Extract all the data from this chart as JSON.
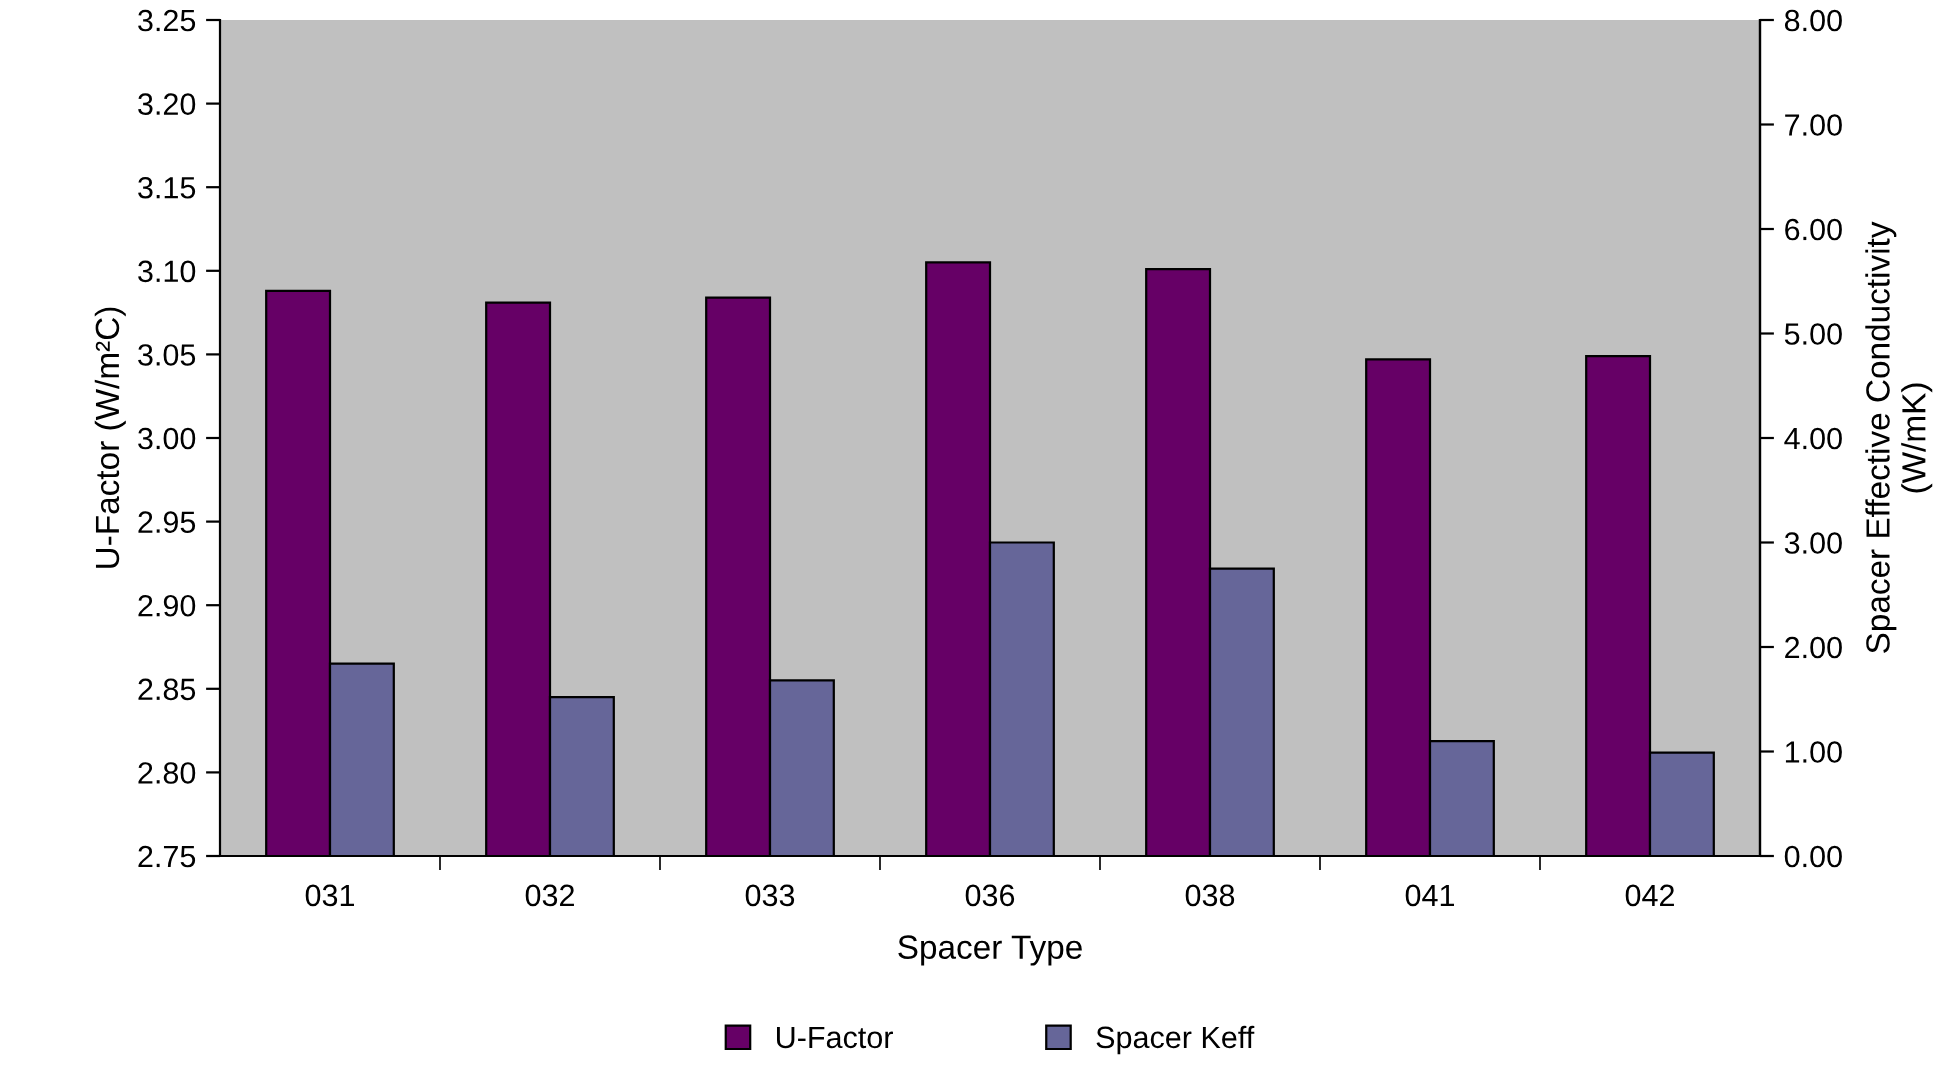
{
  "chart_data": {
    "type": "bar",
    "xlabel": "Spacer Type",
    "ylabel": "U-Factor (W/m²C)",
    "y2label": "Spacer Effective Conductivity\n(W/mK)",
    "categories": [
      "031",
      "032",
      "033",
      "036",
      "038",
      "041",
      "042"
    ],
    "series": [
      {
        "name": "U-Factor",
        "color": "#660066",
        "values": [
          3.088,
          3.081,
          3.084,
          3.105,
          3.101,
          3.047,
          3.049
        ]
      },
      {
        "name": "Spacer Keff",
        "color": "#666699",
        "axis": "y2",
        "values": [
          1.84,
          1.52,
          1.68,
          3.0,
          2.75,
          1.1,
          0.99
        ]
      }
    ],
    "ylim": [
      2.75,
      3.25
    ],
    "yticks": [
      {
        "value": 2.75,
        "label": "2.75"
      },
      {
        "value": 2.8,
        "label": "2.80"
      },
      {
        "value": 2.85,
        "label": "2.85"
      },
      {
        "value": 2.9,
        "label": "2.90"
      },
      {
        "value": 2.95,
        "label": "2.95"
      },
      {
        "value": 3.0,
        "label": "3.00"
      },
      {
        "value": 3.05,
        "label": "3.05"
      },
      {
        "value": 3.1,
        "label": "3.10"
      },
      {
        "value": 3.15,
        "label": "3.15"
      },
      {
        "value": 3.2,
        "label": "3.20"
      },
      {
        "value": 3.25,
        "label": "3.25"
      }
    ],
    "y2lim": [
      0,
      8
    ],
    "y2ticks": [
      {
        "value": 0,
        "label": "0.00"
      },
      {
        "value": 1,
        "label": "1.00"
      },
      {
        "value": 2,
        "label": "2.00"
      },
      {
        "value": 3,
        "label": "3.00"
      },
      {
        "value": 4,
        "label": "4.00"
      },
      {
        "value": 5,
        "label": "5.00"
      },
      {
        "value": 6,
        "label": "6.00"
      },
      {
        "value": 7,
        "label": "7.00"
      },
      {
        "value": 8,
        "label": "8.00"
      }
    ],
    "grid": false,
    "legend": "bottom"
  }
}
